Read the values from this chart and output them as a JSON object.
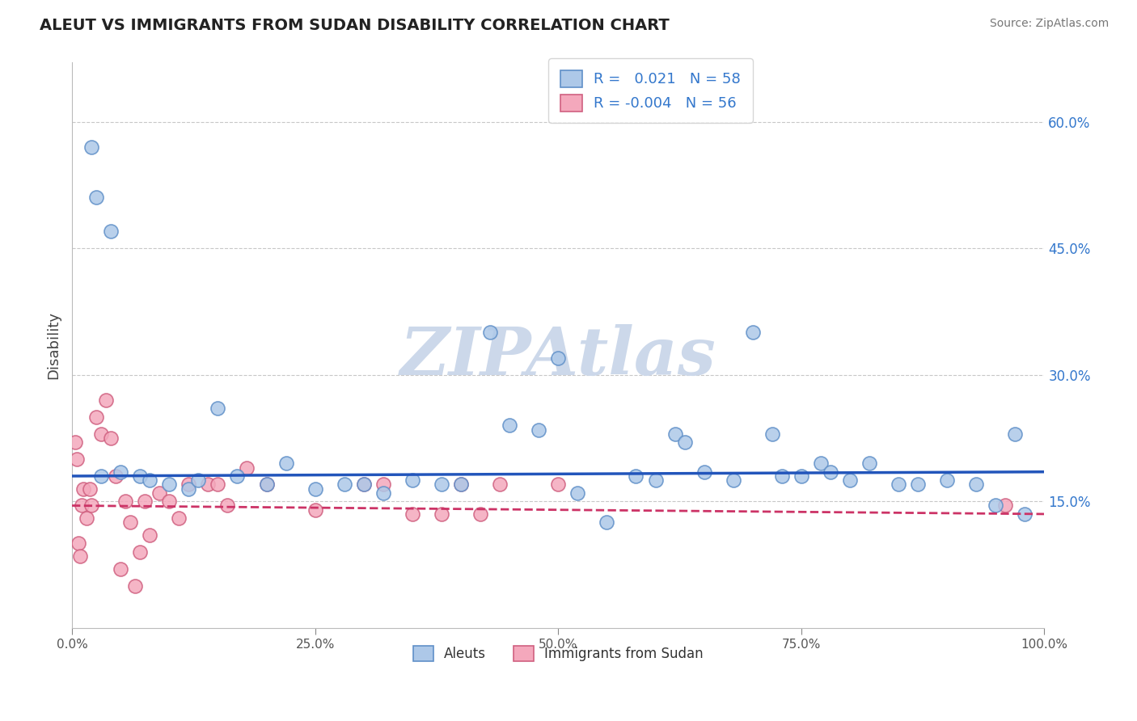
{
  "title": "ALEUT VS IMMIGRANTS FROM SUDAN DISABILITY CORRELATION CHART",
  "source": "Source: ZipAtlas.com",
  "ylabel": "Disability",
  "aleut_color": "#adc8e8",
  "sudan_color": "#f4a8bc",
  "aleut_edge": "#6090c8",
  "sudan_edge": "#d06080",
  "trendline_aleut": "#2255bb",
  "trendline_sudan": "#cc3366",
  "grid_color": "#c8c8c8",
  "watermark_color": "#ccd8ea",
  "background": "#ffffff",
  "ytick_vals": [
    15.0,
    30.0,
    45.0,
    60.0
  ],
  "xlim": [
    0,
    100
  ],
  "ylim": [
    0,
    67
  ],
  "aleut_R": "0.021",
  "aleut_N": "58",
  "sudan_R": "-0.004",
  "sudan_N": "56",
  "aleut_x": [
    2.0,
    2.5,
    4.0,
    15.0,
    22.0,
    35.0,
    38.0,
    40.0,
    43.0,
    48.0,
    50.0,
    55.0,
    58.0,
    62.0,
    63.0,
    65.0,
    68.0,
    70.0,
    72.0,
    73.0,
    75.0,
    77.0,
    80.0,
    82.0,
    85.0,
    87.0,
    90.0,
    93.0,
    95.0,
    97.0,
    98.0,
    3.0,
    5.0,
    7.0,
    8.0,
    10.0,
    12.0,
    13.0,
    17.0,
    20.0,
    25.0,
    28.0,
    30.0,
    32.0,
    45.0,
    52.0,
    60.0,
    78.0
  ],
  "aleut_y": [
    57.0,
    51.0,
    47.0,
    26.0,
    19.5,
    17.5,
    17.0,
    17.0,
    35.0,
    23.5,
    32.0,
    12.5,
    18.0,
    23.0,
    22.0,
    18.5,
    17.5,
    35.0,
    23.0,
    18.0,
    18.0,
    19.5,
    17.5,
    19.5,
    17.0,
    17.0,
    17.5,
    17.0,
    14.5,
    23.0,
    13.5,
    18.0,
    18.5,
    18.0,
    17.5,
    17.0,
    16.5,
    17.5,
    18.0,
    17.0,
    16.5,
    17.0,
    17.0,
    16.0,
    24.0,
    16.0,
    17.5,
    18.5
  ],
  "sudan_x": [
    0.3,
    0.5,
    0.7,
    0.8,
    1.0,
    1.2,
    1.5,
    1.8,
    2.0,
    2.5,
    3.0,
    3.5,
    4.0,
    4.5,
    5.0,
    5.5,
    6.0,
    6.5,
    7.0,
    7.5,
    8.0,
    9.0,
    10.0,
    11.0,
    12.0,
    14.0,
    15.0,
    16.0,
    18.0,
    20.0,
    25.0,
    30.0,
    32.0,
    35.0,
    38.0,
    40.0,
    42.0,
    44.0,
    50.0,
    96.0
  ],
  "sudan_y": [
    22.0,
    20.0,
    10.0,
    8.5,
    14.5,
    16.5,
    13.0,
    16.5,
    14.5,
    25.0,
    23.0,
    27.0,
    22.5,
    18.0,
    7.0,
    15.0,
    12.5,
    5.0,
    9.0,
    15.0,
    11.0,
    16.0,
    15.0,
    13.0,
    17.0,
    17.0,
    17.0,
    14.5,
    19.0,
    17.0,
    14.0,
    17.0,
    17.0,
    13.5,
    13.5,
    17.0,
    13.5,
    17.0,
    17.0,
    14.5
  ]
}
